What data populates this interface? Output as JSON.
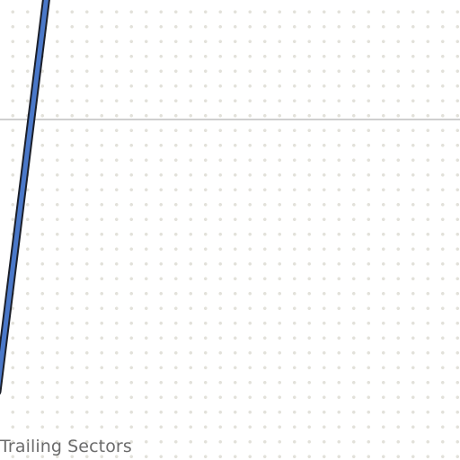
{
  "label": {
    "text": "Trailing Sectors"
  },
  "colors": {
    "track_fill": "#4a78c9",
    "track_outline": "#1b1f2a",
    "grid_dot": "#e2e1da",
    "divider": "#cfcfcf",
    "label_text": "#6b6b6b"
  }
}
